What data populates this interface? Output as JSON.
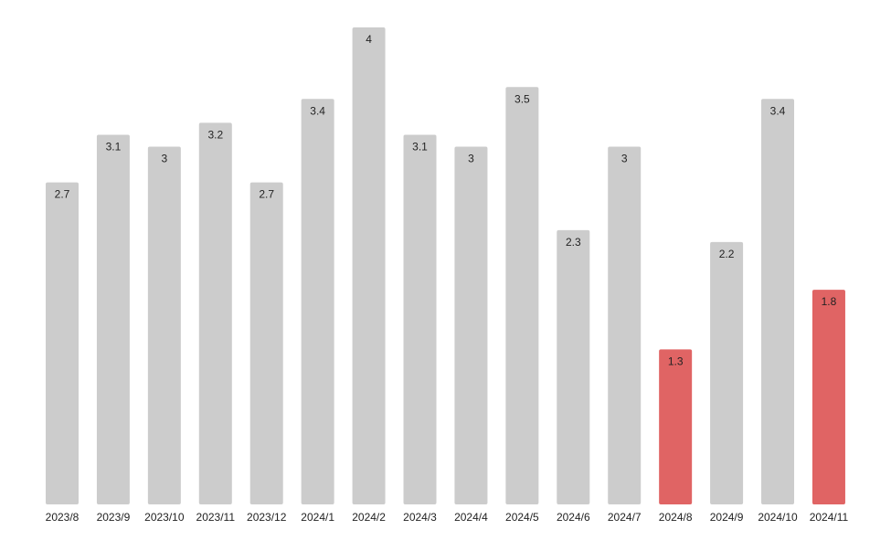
{
  "chart_data": {
    "type": "bar",
    "title": "",
    "xlabel": "",
    "ylabel": "",
    "ylim": [
      0,
      4
    ],
    "grid": false,
    "legend": "none",
    "categories": [
      "2023/8",
      "2023/9",
      "2023/10",
      "2023/11",
      "2023/12",
      "2024/1",
      "2024/2",
      "2024/3",
      "2024/4",
      "2024/5",
      "2024/6",
      "2024/7",
      "2024/8",
      "2024/9",
      "2024/10",
      "2024/11"
    ],
    "values": [
      2.7,
      3.1,
      3,
      3.2,
      2.7,
      3.4,
      4,
      3.1,
      3,
      3.5,
      2.3,
      3,
      1.3,
      2.2,
      3.4,
      1.8
    ],
    "value_labels": [
      "2.7",
      "3.1",
      "3",
      "3.2",
      "2.7",
      "3.4",
      "4",
      "3.1",
      "3",
      "3.5",
      "2.3",
      "3",
      "1.3",
      "2.2",
      "3.4",
      "1.8"
    ],
    "highlighted": [
      "2024/8",
      "2024/11"
    ],
    "colors": {
      "default": "#cccccc",
      "highlight": "#e06464"
    }
  }
}
